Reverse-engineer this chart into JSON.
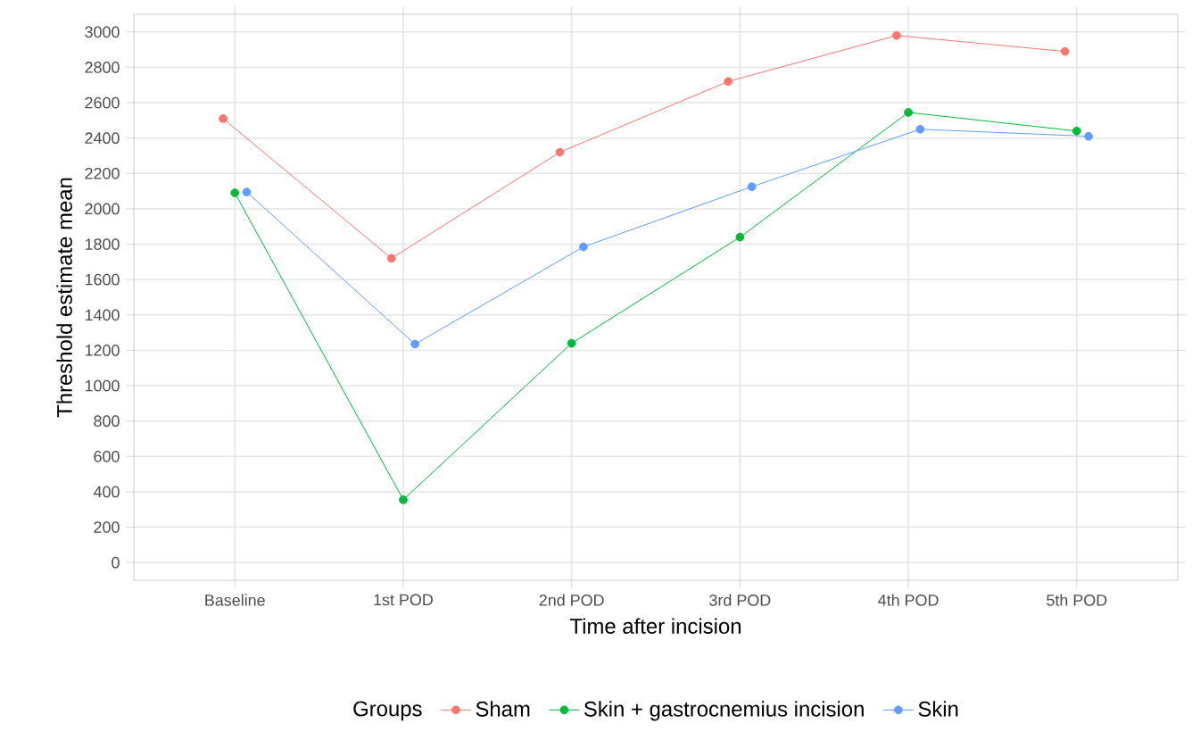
{
  "chart_data": {
    "type": "line",
    "xlabel": "Time after incision",
    "ylabel": "Threshold estimate mean",
    "legend_title": "Groups",
    "categories": [
      "Baseline",
      "1st POD",
      "2nd POD",
      "3rd POD",
      "4th POD",
      "5th POD"
    ],
    "series": [
      {
        "name": "Sham",
        "color": "#f8766d",
        "values": [
          2510,
          1720,
          2320,
          2720,
          2980,
          2890
        ]
      },
      {
        "name": "Skin + gastrocnemius incision",
        "color": "#00ba38",
        "values": [
          2090,
          355,
          1240,
          1840,
          2545,
          2440
        ]
      },
      {
        "name": "Skin",
        "color": "#619cff",
        "values": [
          2095,
          1235,
          1785,
          2125,
          2450,
          2410
        ]
      }
    ],
    "ylim": [
      -100,
      3100
    ],
    "yticks": [
      0,
      200,
      400,
      600,
      800,
      1000,
      1200,
      1400,
      1600,
      1800,
      2000,
      2200,
      2400,
      2600,
      2800,
      3000
    ],
    "grid": true,
    "legend": "bottom",
    "marker": "circle",
    "line_style": "solid"
  }
}
